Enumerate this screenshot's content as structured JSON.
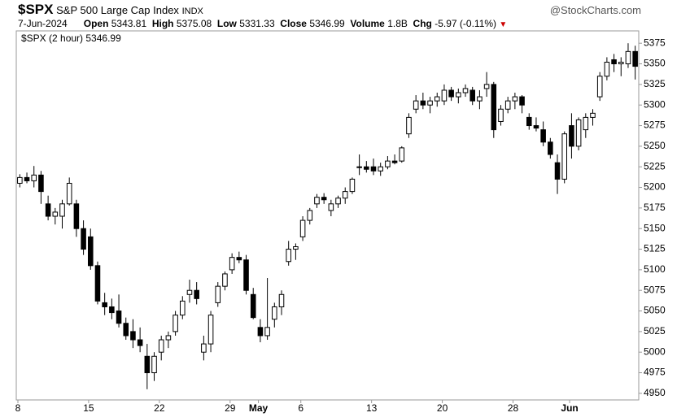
{
  "chart_data": {
    "type": "candlestick",
    "header": {
      "symbol": "$SPX",
      "name": "S&P 500 Large Cap Index",
      "exchange": "INDX",
      "source": "@StockCharts.com",
      "date": "7-Jun-2024",
      "open_label": "Open",
      "open": "5343.81",
      "high_label": "High",
      "high": "5375.08",
      "low_label": "Low",
      "low": "5331.33",
      "close_label": "Close",
      "close": "5346.99",
      "volume_label": "Volume",
      "volume": "1.8B",
      "chg_label": "Chg",
      "chg": "-5.97",
      "chg_pct": "(-0.11%)"
    },
    "legend": "$SPX (2 hour) 5346.99",
    "categories": [
      "8",
      null,
      null,
      null,
      null,
      null,
      null,
      null,
      null,
      null,
      "15",
      null,
      null,
      null,
      null,
      null,
      null,
      null,
      null,
      null,
      "22",
      null,
      null,
      null,
      null,
      null,
      null,
      null,
      null,
      null,
      "29",
      null,
      null,
      null,
      "May",
      null,
      null,
      null,
      null,
      null,
      "6",
      null,
      null,
      null,
      null,
      null,
      null,
      null,
      null,
      null,
      "13",
      null,
      null,
      null,
      null,
      null,
      null,
      null,
      null,
      null,
      "20",
      null,
      null,
      null,
      null,
      null,
      null,
      null,
      null,
      null,
      "28",
      null,
      null,
      null,
      null,
      null,
      null,
      null,
      "Jun",
      null,
      null,
      null,
      null,
      null,
      null,
      null,
      null,
      null
    ],
    "open": [
      5205,
      5212,
      5208,
      5215,
      5180,
      5165,
      5165,
      5180,
      5180,
      5150,
      5140,
      5105,
      5060,
      5055,
      5050,
      5035,
      5025,
      5015,
      4995,
      4975,
      5000,
      5015,
      5025,
      5045,
      5070,
      5075,
      5000,
      5010,
      5060,
      5080,
      5100,
      5115,
      5112,
      5070,
      5030,
      5020,
      5040,
      5055,
      5110,
      5125,
      5140,
      5160,
      5180,
      5188,
      5172,
      5180,
      5187,
      5195,
      5225,
      5225,
      5225,
      5220,
      5225,
      5232,
      5232,
      5265,
      5295,
      5305,
      5300,
      5305,
      5305,
      5318,
      5310,
      5315,
      5318,
      5305,
      5320,
      5325,
      5280,
      5295,
      5305,
      5310,
      5285,
      5275,
      5270,
      5255,
      5230,
      5210,
      5275,
      5250,
      5270,
      5285,
      5310,
      5335,
      5355,
      5350,
      5350,
      5365
    ],
    "high": [
      5216,
      5218,
      5226,
      5220,
      5190,
      5175,
      5185,
      5212,
      5185,
      5160,
      5150,
      5110,
      5072,
      5065,
      5070,
      5042,
      5040,
      5030,
      5010,
      5000,
      5020,
      5025,
      5050,
      5068,
      5088,
      5085,
      5020,
      5050,
      5085,
      5098,
      5120,
      5122,
      5118,
      5078,
      5040,
      5090,
      5060,
      5075,
      5135,
      5132,
      5165,
      5175,
      5192,
      5193,
      5185,
      5190,
      5200,
      5212,
      5240,
      5232,
      5235,
      5230,
      5238,
      5240,
      5250,
      5290,
      5312,
      5315,
      5310,
      5315,
      5325,
      5322,
      5320,
      5325,
      5322,
      5318,
      5340,
      5328,
      5300,
      5310,
      5315,
      5312,
      5290,
      5285,
      5280,
      5260,
      5240,
      5268,
      5290,
      5285,
      5290,
      5295,
      5340,
      5358,
      5362,
      5358,
      5375,
      5372
    ],
    "low": [
      5200,
      5205,
      5200,
      5180,
      5160,
      5155,
      5150,
      5178,
      5140,
      5118,
      5100,
      5058,
      5045,
      5040,
      5030,
      5015,
      5005,
      5000,
      4955,
      4965,
      4990,
      5005,
      5020,
      5040,
      5060,
      5058,
      4990,
      5000,
      5055,
      5075,
      5095,
      5108,
      5070,
      5040,
      5012,
      5015,
      5030,
      5045,
      5105,
      5112,
      5135,
      5155,
      5175,
      5180,
      5165,
      5175,
      5180,
      5192,
      5215,
      5218,
      5215,
      5214,
      5222,
      5228,
      5230,
      5260,
      5290,
      5295,
      5290,
      5298,
      5300,
      5305,
      5302,
      5310,
      5300,
      5295,
      5310,
      5260,
      5275,
      5290,
      5295,
      5290,
      5270,
      5268,
      5250,
      5235,
      5192,
      5205,
      5235,
      5245,
      5260,
      5275,
      5305,
      5330,
      5340,
      5335,
      5345,
      5331
    ],
    "close": [
      5212,
      5208,
      5215,
      5195,
      5165,
      5170,
      5180,
      5205,
      5150,
      5125,
      5105,
      5062,
      5055,
      5048,
      5035,
      5020,
      5015,
      5008,
      4975,
      4995,
      5015,
      5020,
      5045,
      5062,
      5075,
      5065,
      5010,
      5045,
      5080,
      5095,
      5115,
      5112,
      5075,
      5042,
      5020,
      5030,
      5055,
      5070,
      5125,
      5128,
      5160,
      5172,
      5188,
      5185,
      5180,
      5187,
      5195,
      5210,
      5225,
      5222,
      5220,
      5225,
      5232,
      5230,
      5248,
      5285,
      5305,
      5300,
      5305,
      5310,
      5318,
      5310,
      5315,
      5320,
      5305,
      5310,
      5325,
      5270,
      5295,
      5305,
      5310,
      5300,
      5275,
      5272,
      5255,
      5240,
      5210,
      5265,
      5250,
      5282,
      5285,
      5290,
      5335,
      5352,
      5350,
      5352,
      5365,
      5347
    ],
    "color": "#000000",
    "ylim": [
      4942,
      5390
    ],
    "yticks": [
      4950,
      4975,
      5000,
      5025,
      5050,
      5075,
      5100,
      5125,
      5150,
      5175,
      5200,
      5225,
      5250,
      5275,
      5300,
      5325,
      5350,
      5375
    ],
    "grid": false
  }
}
